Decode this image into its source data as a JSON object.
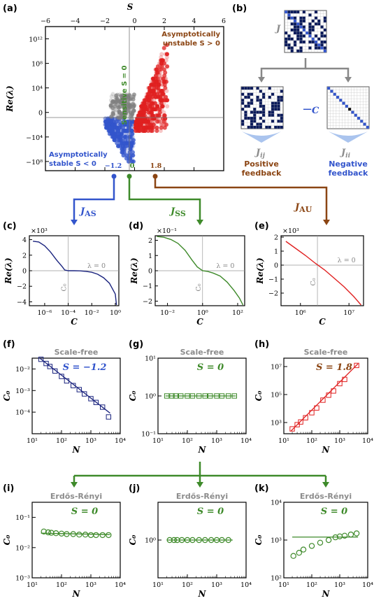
{
  "colors": {
    "blue": "#3355cc",
    "green": "#3e8a2a",
    "brown": "#8b4513",
    "red": "#e02020",
    "gray": "#808080",
    "navy": "#0a1a5a",
    "darkline": "#1a237e",
    "title_gray": "#8c8c8c"
  },
  "panels": {
    "a": "(a)",
    "b": "(b)",
    "c": "(c)",
    "d": "(d)",
    "e": "(e)",
    "f": "(f)",
    "g": "(g)",
    "h": "(h)",
    "i": "(i)",
    "j": "(j)",
    "k": "(k)"
  },
  "panel_b": {
    "J": "J",
    "minus": "−",
    "C": "C",
    "Jij": "J",
    "Jij_sub": "ij",
    "Jii": "J",
    "Jii_sub": "ii",
    "positive": [
      "Positive",
      "feedback"
    ],
    "negative": [
      "Negative",
      "feedback"
    ]
  },
  "branches": {
    "J_AS": "J",
    "J_AS_sub": "AS",
    "J_SS": "J",
    "J_SS_sub": "SS",
    "J_AU": "J",
    "J_AU_sub": "AU"
  },
  "chart_data": [
    {
      "id": "a",
      "type": "scatter",
      "title": "",
      "xlabel": "S",
      "ylabel": "Re(λ)",
      "xlim": [
        -6,
        6
      ],
      "x_ticks": [
        "−6",
        "−4",
        "−2",
        "0",
        "2",
        "4",
        "6"
      ],
      "y_ticks": [
        "10¹²",
        "10⁸",
        "10⁴",
        "0",
        "−10⁴",
        "−10⁸"
      ],
      "y_scale": "symlog",
      "annotations": {
        "unstable": [
          "Asymptotically",
          "unstable S > 0"
        ],
        "stable": [
          "Asymptotically",
          "stable S < 0"
        ],
        "sensitive": "Sensitive S = 0",
        "marker_values": [
          "−1.2",
          "0",
          "1.8"
        ]
      },
      "series": [
        {
          "color": "blue",
          "x_range": [
            -2.0,
            -0.05
          ],
          "y_range": [
            -8,
            -2
          ]
        },
        {
          "color": "gray",
          "x_range": [
            -1.6,
            0.0
          ],
          "y_range": [
            -1,
            3
          ]
        },
        {
          "color": "red",
          "x_range": [
            0.05,
            2.2
          ],
          "y_range": [
            -3,
            12
          ]
        }
      ]
    },
    {
      "id": "c",
      "type": "line",
      "xlabel": "C",
      "ylabel": "Re(λ)",
      "multiplier": "×10³",
      "x_ticks": [
        "10⁻⁶",
        "10⁻⁴",
        "10⁻²",
        "10⁰"
      ],
      "y_ticks": [
        "4",
        "2",
        "0",
        "−2",
        "−4"
      ],
      "ylim": [
        -4.5,
        4.5
      ],
      "annotations": {
        "lambda": "λ = 0",
        "c0": "C₀"
      },
      "x": [
        -7,
        -6.5,
        -6,
        -5.5,
        -5,
        -4.5,
        -4.3,
        -4.0,
        -3.5,
        -3,
        -2.5,
        -2,
        -1.5,
        -1.0,
        -0.5,
        0,
        0.1
      ],
      "y": [
        3.8,
        3.7,
        3.2,
        2.4,
        1.4,
        0.5,
        0.1,
        0.0,
        0.0,
        -0.02,
        -0.08,
        -0.2,
        -0.45,
        -0.9,
        -1.6,
        -3.0,
        -4.4
      ]
    },
    {
      "id": "d",
      "type": "line",
      "xlabel": "C",
      "ylabel": "Re(λ)",
      "multiplier": "×10⁻¹",
      "x_ticks": [
        "10⁻²",
        "10⁰",
        "10²"
      ],
      "y_ticks": [
        "2",
        "1",
        "0",
        "−1",
        "−2"
      ],
      "ylim": [
        -2.3,
        2.3
      ],
      "annotations": {
        "lambda": "λ = 0",
        "c0": "C₀"
      },
      "x": [
        -2.6,
        -2.2,
        -1.8,
        -1.4,
        -1.0,
        -0.6,
        -0.3,
        0.0,
        0.3,
        0.6,
        1.0,
        1.4,
        1.8,
        2.1,
        2.3
      ],
      "y": [
        2.25,
        2.2,
        2.05,
        1.8,
        1.35,
        0.7,
        0.25,
        0.0,
        -0.05,
        -0.15,
        -0.35,
        -0.75,
        -1.3,
        -1.8,
        -2.25
      ]
    },
    {
      "id": "e",
      "type": "line",
      "xlabel": "C",
      "ylabel": "Re(λ)",
      "multiplier": "×10³",
      "x_ticks": [
        "10⁶",
        "10⁷"
      ],
      "y_ticks": [
        "2",
        "1",
        "0",
        "−1",
        "−2"
      ],
      "ylim": [
        -2.9,
        2.1
      ],
      "annotations": {
        "lambda": "λ = 0",
        "c0": "C₀"
      },
      "x": [
        5.7,
        5.9,
        6.1,
        6.3,
        6.5,
        6.7,
        6.9,
        7.1,
        7.25
      ],
      "y": [
        1.7,
        1.2,
        0.7,
        0.15,
        -0.35,
        -0.95,
        -1.55,
        -2.25,
        -2.85
      ]
    },
    {
      "id": "f",
      "type": "scatter",
      "title": "Scale-free",
      "s_label": "S = −1.2",
      "xlabel": "N",
      "ylabel": "C₀",
      "x_ticks": [
        "10¹",
        "10²",
        "10³",
        "10⁴"
      ],
      "y_ticks": [
        "10⁻²",
        "10⁻³",
        "10⁻⁴"
      ],
      "xlim_log10": [
        1,
        4
      ],
      "ylim_log10": [
        -5,
        -1.5
      ],
      "x": [
        20,
        30,
        40,
        60,
        100,
        150,
        250,
        400,
        600,
        1000,
        1500,
        2500,
        4000
      ],
      "y": [
        0.028,
        0.018,
        0.013,
        0.008,
        0.0045,
        0.0028,
        0.0017,
        0.0011,
        0.0007,
        0.00042,
        0.00028,
        0.00017,
        6e-05
      ],
      "fit": {
        "x": [
          18,
          4500
        ],
        "y": [
          0.032,
          9e-05
        ]
      }
    },
    {
      "id": "g",
      "type": "scatter",
      "title": "Scale-free",
      "s_label": "S = 0",
      "xlabel": "N",
      "ylabel": "C₀",
      "x_ticks": [
        "10¹",
        "10²",
        "10³",
        "10⁴"
      ],
      "y_ticks": [
        "10¹",
        "10⁰",
        "10⁻¹"
      ],
      "xlim_log10": [
        1,
        4
      ],
      "ylim_log10": [
        -1,
        1
      ],
      "x": [
        20,
        30,
        40,
        60,
        100,
        150,
        250,
        400,
        600,
        1000,
        1500,
        2500,
        4000
      ],
      "y": [
        1,
        1,
        1,
        1,
        1,
        1,
        1,
        1,
        1,
        1,
        1,
        1,
        1
      ],
      "fit": {
        "x": [
          18,
          4500
        ],
        "y": [
          1,
          1
        ]
      }
    },
    {
      "id": "h",
      "type": "scatter",
      "title": "Scale-free",
      "s_label": "S = 1.8",
      "xlabel": "N",
      "ylabel": "C₀",
      "x_ticks": [
        "10¹",
        "10²",
        "10³",
        "10⁴"
      ],
      "y_ticks": [
        "10⁷",
        "10⁵",
        "10³"
      ],
      "xlim_log10": [
        1,
        4
      ],
      "ylim_log10": [
        2.2,
        7.6
      ],
      "x": [
        20,
        30,
        40,
        60,
        100,
        150,
        250,
        400,
        600,
        1000,
        1500,
        4000
      ],
      "y": [
        350,
        700,
        1100,
        2200,
        5000,
        11000,
        40000,
        90000,
        180000,
        600000,
        1200000,
        12000000
      ],
      "fit": {
        "x": [
          18,
          4500
        ],
        "y": [
          250,
          16000000
        ]
      }
    },
    {
      "id": "i",
      "type": "scatter",
      "title": "Erdős-Rényi",
      "s_label": "S = 0",
      "xlabel": "N",
      "ylabel": "C₀",
      "x_ticks": [
        "10¹",
        "10²",
        "10³",
        "10⁴"
      ],
      "y_ticks": [
        "10⁻¹",
        "10⁻²",
        "10⁻³"
      ],
      "xlim_log10": [
        1,
        4
      ],
      "ylim_log10": [
        -3,
        -0.5
      ],
      "x": [
        25,
        35,
        45,
        65,
        100,
        150,
        250,
        400,
        650,
        1000,
        1500,
        2500,
        4000
      ],
      "y": [
        0.034,
        0.032,
        0.031,
        0.03,
        0.029,
        0.028,
        0.028,
        0.027,
        0.027,
        0.026,
        0.026,
        0.026,
        0.026
      ],
      "fit": {
        "x": [
          20,
          4500
        ],
        "y": [
          0.03,
          0.027
        ]
      }
    },
    {
      "id": "j",
      "type": "scatter",
      "title": "Erdős-Rényi",
      "s_label": "S = 0",
      "xlabel": "N",
      "ylabel": "C₀",
      "x_ticks": [
        "10¹",
        "10²",
        "10³",
        "10⁴"
      ],
      "y_ticks": [
        "10⁰"
      ],
      "xlim_log10": [
        1,
        4
      ],
      "ylim_log10": [
        -1,
        1
      ],
      "x": [
        25,
        35,
        45,
        65,
        100,
        150,
        250,
        400,
        650,
        1000,
        1500,
        2500
      ],
      "y": [
        1,
        1,
        1,
        1,
        1,
        1,
        1,
        1,
        1,
        1,
        1,
        1
      ],
      "fit": {
        "x": [
          20,
          3500
        ],
        "y": [
          1,
          1
        ]
      }
    },
    {
      "id": "k",
      "type": "scatter",
      "title": "Erdős-Rényi",
      "s_label": "S = 0",
      "xlabel": "N",
      "ylabel": "C₀",
      "x_ticks": [
        "10¹",
        "10²",
        "10³",
        "10⁴"
      ],
      "y_ticks": [
        "10⁴",
        "10³",
        "10²"
      ],
      "xlim_log10": [
        1,
        4
      ],
      "ylim_log10": [
        2,
        4
      ],
      "x": [
        22,
        35,
        50,
        100,
        200,
        400,
        700,
        1000,
        1500,
        2500,
        4000
      ],
      "y": [
        380,
        460,
        560,
        700,
        850,
        1000,
        1180,
        1250,
        1300,
        1400,
        1500
      ],
      "fit": {
        "x": [
          20,
          4500
        ],
        "y": [
          1200,
          1200
        ]
      }
    }
  ]
}
